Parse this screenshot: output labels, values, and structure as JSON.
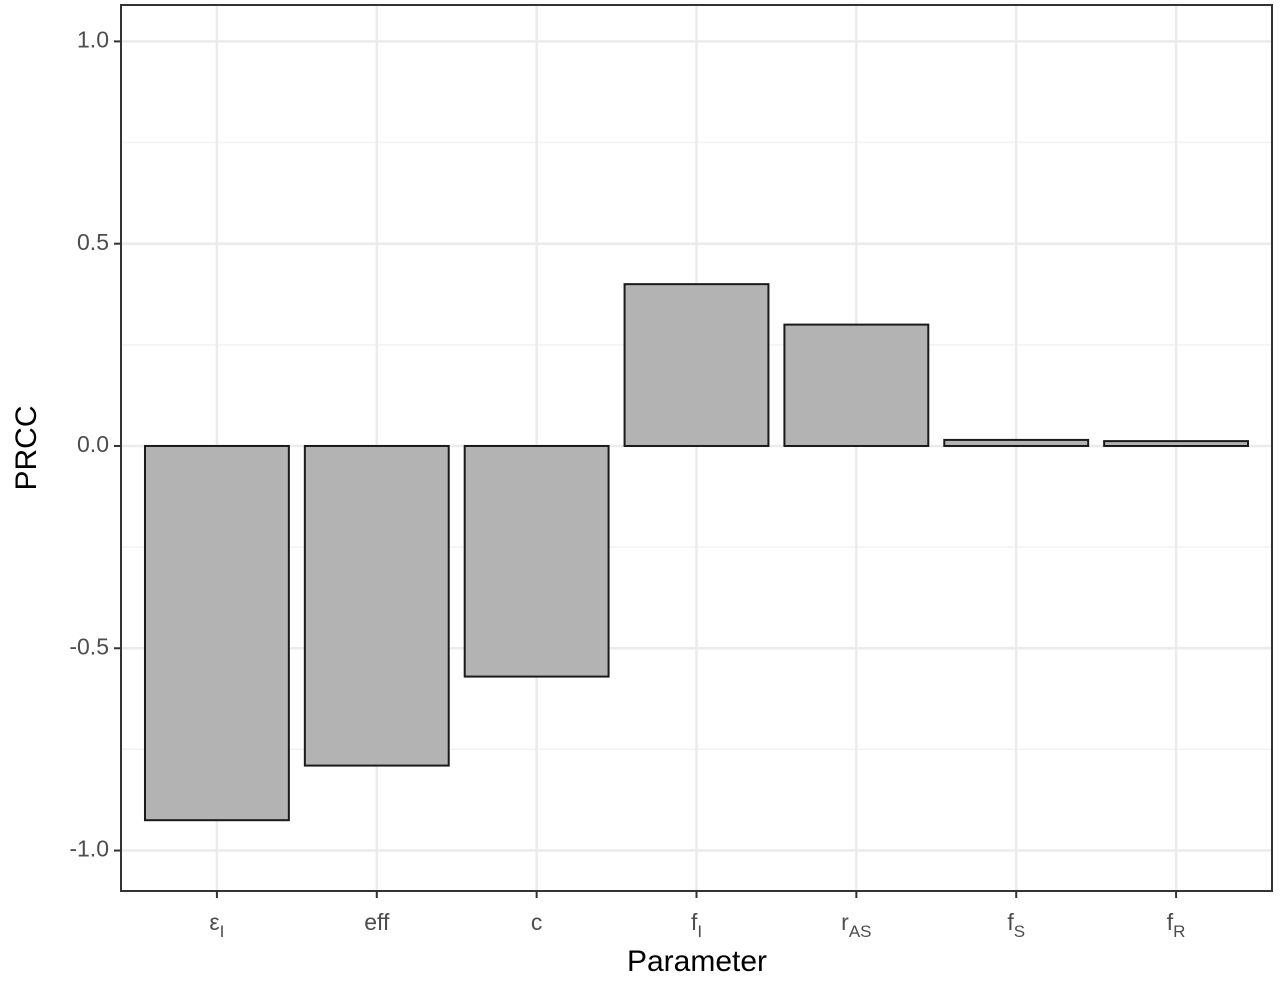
{
  "chart_data": {
    "type": "bar",
    "x_label": "Parameter",
    "y_label": "PRCC",
    "categories": [
      "ε",
      "eff",
      "c",
      "f",
      "r",
      "f",
      "f"
    ],
    "category_subscripts": [
      "I",
      null,
      null,
      "I",
      "AS",
      "S",
      "R"
    ],
    "values": [
      -0.925,
      -0.79,
      -0.57,
      0.4,
      0.3,
      0.015,
      0.012
    ],
    "color": "#b3b3b3",
    "ylim": [
      -1.1,
      1.09
    ],
    "yticks": [
      -1.0,
      -0.5,
      0.0,
      0.5,
      1.0
    ],
    "ytick_labels": [
      "-1.0",
      "-0.5",
      "0.0",
      "0.5",
      "1.0"
    ],
    "grid": true
  }
}
